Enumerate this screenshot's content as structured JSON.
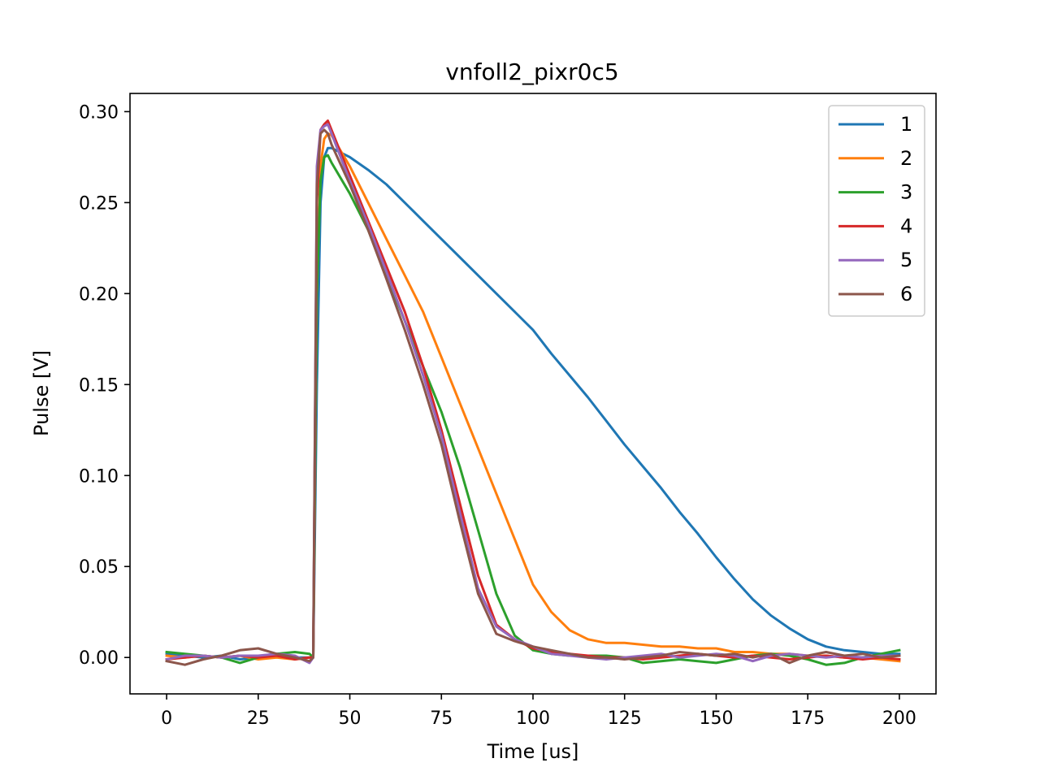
{
  "chart_data": {
    "type": "line",
    "title": "vnfoll2_pixr0c5",
    "xlabel": "Time [us]",
    "ylabel": "Pulse [V]",
    "xlim": [
      -10,
      210
    ],
    "ylim": [
      -0.02,
      0.31
    ],
    "xticks": [
      0,
      25,
      50,
      75,
      100,
      125,
      150,
      175,
      200
    ],
    "xtick_labels": [
      "0",
      "25",
      "50",
      "75",
      "100",
      "125",
      "150",
      "175",
      "200"
    ],
    "yticks": [
      0.0,
      0.05,
      0.1,
      0.15,
      0.2,
      0.25,
      0.3
    ],
    "ytick_labels": [
      "0.00",
      "0.05",
      "0.10",
      "0.15",
      "0.20",
      "0.25",
      "0.30"
    ],
    "grid": false,
    "legend_position": "top-right",
    "series": [
      {
        "name": "1",
        "color": "#1f77b4",
        "points": [
          [
            0,
            0.002
          ],
          [
            5,
            0.001
          ],
          [
            10,
            0.0
          ],
          [
            15,
            0.001
          ],
          [
            20,
            -0.001
          ],
          [
            25,
            0.0
          ],
          [
            30,
            0.001
          ],
          [
            35,
            0.0
          ],
          [
            39,
            0.0
          ],
          [
            40,
            0.0
          ],
          [
            41,
            0.15
          ],
          [
            42,
            0.25
          ],
          [
            43,
            0.275
          ],
          [
            44,
            0.28
          ],
          [
            45,
            0.28
          ],
          [
            50,
            0.275
          ],
          [
            55,
            0.268
          ],
          [
            60,
            0.26
          ],
          [
            65,
            0.25
          ],
          [
            70,
            0.24
          ],
          [
            75,
            0.23
          ],
          [
            80,
            0.22
          ],
          [
            85,
            0.21
          ],
          [
            90,
            0.2
          ],
          [
            95,
            0.19
          ],
          [
            100,
            0.18
          ],
          [
            105,
            0.167
          ],
          [
            110,
            0.155
          ],
          [
            115,
            0.143
          ],
          [
            120,
            0.13
          ],
          [
            125,
            0.117
          ],
          [
            130,
            0.105
          ],
          [
            135,
            0.093
          ],
          [
            140,
            0.08
          ],
          [
            145,
            0.068
          ],
          [
            150,
            0.055
          ],
          [
            155,
            0.043
          ],
          [
            160,
            0.032
          ],
          [
            165,
            0.023
          ],
          [
            170,
            0.016
          ],
          [
            175,
            0.01
          ],
          [
            180,
            0.006
          ],
          [
            185,
            0.004
          ],
          [
            190,
            0.003
          ],
          [
            195,
            0.002
          ],
          [
            200,
            0.002
          ]
        ]
      },
      {
        "name": "2",
        "color": "#ff7f0e",
        "points": [
          [
            0,
            0.001
          ],
          [
            5,
            0.0
          ],
          [
            10,
            0.001
          ],
          [
            15,
            0.0
          ],
          [
            20,
            0.001
          ],
          [
            25,
            -0.001
          ],
          [
            30,
            0.0
          ],
          [
            35,
            -0.001
          ],
          [
            39,
            0.0
          ],
          [
            40,
            0.0
          ],
          [
            41,
            0.2
          ],
          [
            42,
            0.27
          ],
          [
            43,
            0.285
          ],
          [
            44,
            0.288
          ],
          [
            45,
            0.287
          ],
          [
            50,
            0.27
          ],
          [
            55,
            0.25
          ],
          [
            60,
            0.23
          ],
          [
            65,
            0.21
          ],
          [
            70,
            0.19
          ],
          [
            75,
            0.165
          ],
          [
            80,
            0.14
          ],
          [
            85,
            0.115
          ],
          [
            90,
            0.09
          ],
          [
            95,
            0.065
          ],
          [
            100,
            0.04
          ],
          [
            105,
            0.025
          ],
          [
            110,
            0.015
          ],
          [
            115,
            0.01
          ],
          [
            120,
            0.008
          ],
          [
            125,
            0.008
          ],
          [
            130,
            0.007
          ],
          [
            135,
            0.006
          ],
          [
            140,
            0.006
          ],
          [
            145,
            0.005
          ],
          [
            150,
            0.005
          ],
          [
            155,
            0.003
          ],
          [
            160,
            0.003
          ],
          [
            165,
            0.002
          ],
          [
            170,
            0.002
          ],
          [
            175,
            0.001
          ],
          [
            180,
            0.001
          ],
          [
            185,
            0.0
          ],
          [
            190,
            0.0
          ],
          [
            195,
            -0.001
          ],
          [
            200,
            -0.002
          ]
        ]
      },
      {
        "name": "3",
        "color": "#2ca02c",
        "points": [
          [
            0,
            0.003
          ],
          [
            5,
            0.002
          ],
          [
            10,
            0.001
          ],
          [
            15,
            0.0
          ],
          [
            20,
            -0.003
          ],
          [
            25,
            0.0
          ],
          [
            30,
            0.002
          ],
          [
            35,
            0.003
          ],
          [
            39,
            0.002
          ],
          [
            40,
            0.0
          ],
          [
            41,
            0.2
          ],
          [
            42,
            0.262
          ],
          [
            43,
            0.275
          ],
          [
            44,
            0.276
          ],
          [
            45,
            0.272
          ],
          [
            50,
            0.255
          ],
          [
            55,
            0.235
          ],
          [
            60,
            0.21
          ],
          [
            65,
            0.185
          ],
          [
            70,
            0.16
          ],
          [
            75,
            0.135
          ],
          [
            80,
            0.105
          ],
          [
            85,
            0.07
          ],
          [
            90,
            0.035
          ],
          [
            95,
            0.012
          ],
          [
            100,
            0.004
          ],
          [
            105,
            0.002
          ],
          [
            110,
            0.001
          ],
          [
            115,
            0.001
          ],
          [
            120,
            0.001
          ],
          [
            125,
            0.0
          ],
          [
            130,
            -0.003
          ],
          [
            135,
            -0.002
          ],
          [
            140,
            -0.001
          ],
          [
            145,
            -0.002
          ],
          [
            150,
            -0.003
          ],
          [
            155,
            -0.001
          ],
          [
            160,
            0.001
          ],
          [
            165,
            0.002
          ],
          [
            170,
            0.001
          ],
          [
            175,
            -0.001
          ],
          [
            180,
            -0.004
          ],
          [
            185,
            -0.003
          ],
          [
            190,
            0.0
          ],
          [
            195,
            0.002
          ],
          [
            200,
            0.004
          ]
        ]
      },
      {
        "name": "4",
        "color": "#d62728",
        "points": [
          [
            0,
            -0.001
          ],
          [
            5,
            0.0
          ],
          [
            10,
            0.001
          ],
          [
            15,
            0.0
          ],
          [
            20,
            0.001
          ],
          [
            25,
            0.0
          ],
          [
            30,
            0.001
          ],
          [
            35,
            -0.001
          ],
          [
            39,
            0.0
          ],
          [
            40,
            0.0
          ],
          [
            41,
            0.25
          ],
          [
            42,
            0.29
          ],
          [
            43,
            0.293
          ],
          [
            44,
            0.295
          ],
          [
            45,
            0.29
          ],
          [
            50,
            0.265
          ],
          [
            55,
            0.24
          ],
          [
            60,
            0.215
          ],
          [
            65,
            0.19
          ],
          [
            70,
            0.16
          ],
          [
            75,
            0.125
          ],
          [
            80,
            0.085
          ],
          [
            85,
            0.045
          ],
          [
            90,
            0.018
          ],
          [
            95,
            0.01
          ],
          [
            100,
            0.005
          ],
          [
            105,
            0.003
          ],
          [
            110,
            0.002
          ],
          [
            115,
            0.001
          ],
          [
            120,
            0.0
          ],
          [
            125,
            0.0
          ],
          [
            130,
            -0.001
          ],
          [
            135,
            0.0
          ],
          [
            140,
            0.001
          ],
          [
            145,
            0.002
          ],
          [
            150,
            0.001
          ],
          [
            155,
            0.0
          ],
          [
            160,
            0.001
          ],
          [
            165,
            0.0
          ],
          [
            170,
            -0.001
          ],
          [
            175,
            0.0
          ],
          [
            180,
            0.001
          ],
          [
            185,
            0.0
          ],
          [
            190,
            -0.001
          ],
          [
            195,
            0.0
          ],
          [
            200,
            -0.001
          ]
        ]
      },
      {
        "name": "5",
        "color": "#9467bd",
        "points": [
          [
            0,
            -0.001
          ],
          [
            5,
            0.001
          ],
          [
            10,
            0.001
          ],
          [
            15,
            0.0
          ],
          [
            20,
            0.001
          ],
          [
            25,
            0.001
          ],
          [
            30,
            0.002
          ],
          [
            35,
            0.001
          ],
          [
            39,
            -0.003
          ],
          [
            40,
            0.0
          ],
          [
            41,
            0.27
          ],
          [
            42,
            0.29
          ],
          [
            43,
            0.292
          ],
          [
            44,
            0.293
          ],
          [
            45,
            0.288
          ],
          [
            50,
            0.262
          ],
          [
            55,
            0.238
          ],
          [
            60,
            0.212
          ],
          [
            65,
            0.185
          ],
          [
            70,
            0.155
          ],
          [
            75,
            0.122
          ],
          [
            80,
            0.08
          ],
          [
            85,
            0.038
          ],
          [
            90,
            0.017
          ],
          [
            95,
            0.01
          ],
          [
            100,
            0.006
          ],
          [
            105,
            0.002
          ],
          [
            110,
            0.001
          ],
          [
            115,
            0.0
          ],
          [
            120,
            -0.001
          ],
          [
            125,
            0.0
          ],
          [
            130,
            0.001
          ],
          [
            135,
            0.002
          ],
          [
            140,
            0.0
          ],
          [
            145,
            0.001
          ],
          [
            150,
            0.002
          ],
          [
            155,
            0.001
          ],
          [
            160,
            -0.002
          ],
          [
            165,
            0.001
          ],
          [
            170,
            0.002
          ],
          [
            175,
            0.001
          ],
          [
            180,
            0.0
          ],
          [
            185,
            0.001
          ],
          [
            190,
            0.0
          ],
          [
            195,
            0.001
          ],
          [
            200,
            0.001
          ]
        ]
      },
      {
        "name": "6",
        "color": "#8c564b",
        "points": [
          [
            0,
            -0.002
          ],
          [
            5,
            -0.004
          ],
          [
            10,
            -0.001
          ],
          [
            15,
            0.001
          ],
          [
            20,
            0.004
          ],
          [
            25,
            0.005
          ],
          [
            30,
            0.002
          ],
          [
            35,
            0.0
          ],
          [
            39,
            -0.002
          ],
          [
            40,
            0.0
          ],
          [
            41,
            0.26
          ],
          [
            42,
            0.288
          ],
          [
            43,
            0.29
          ],
          [
            44,
            0.288
          ],
          [
            45,
            0.282
          ],
          [
            50,
            0.26
          ],
          [
            55,
            0.235
          ],
          [
            60,
            0.208
          ],
          [
            65,
            0.18
          ],
          [
            70,
            0.15
          ],
          [
            75,
            0.117
          ],
          [
            80,
            0.075
          ],
          [
            85,
            0.035
          ],
          [
            90,
            0.013
          ],
          [
            95,
            0.009
          ],
          [
            100,
            0.006
          ],
          [
            105,
            0.004
          ],
          [
            110,
            0.002
          ],
          [
            115,
            0.0
          ],
          [
            120,
            0.0
          ],
          [
            125,
            -0.001
          ],
          [
            130,
            0.0
          ],
          [
            135,
            0.001
          ],
          [
            140,
            0.003
          ],
          [
            145,
            0.002
          ],
          [
            150,
            0.001
          ],
          [
            155,
            0.002
          ],
          [
            160,
            0.0
          ],
          [
            165,
            0.002
          ],
          [
            170,
            -0.003
          ],
          [
            175,
            0.001
          ],
          [
            180,
            0.003
          ],
          [
            185,
            0.001
          ],
          [
            190,
            0.002
          ],
          [
            195,
            0.0
          ],
          [
            200,
            0.001
          ]
        ]
      }
    ]
  }
}
